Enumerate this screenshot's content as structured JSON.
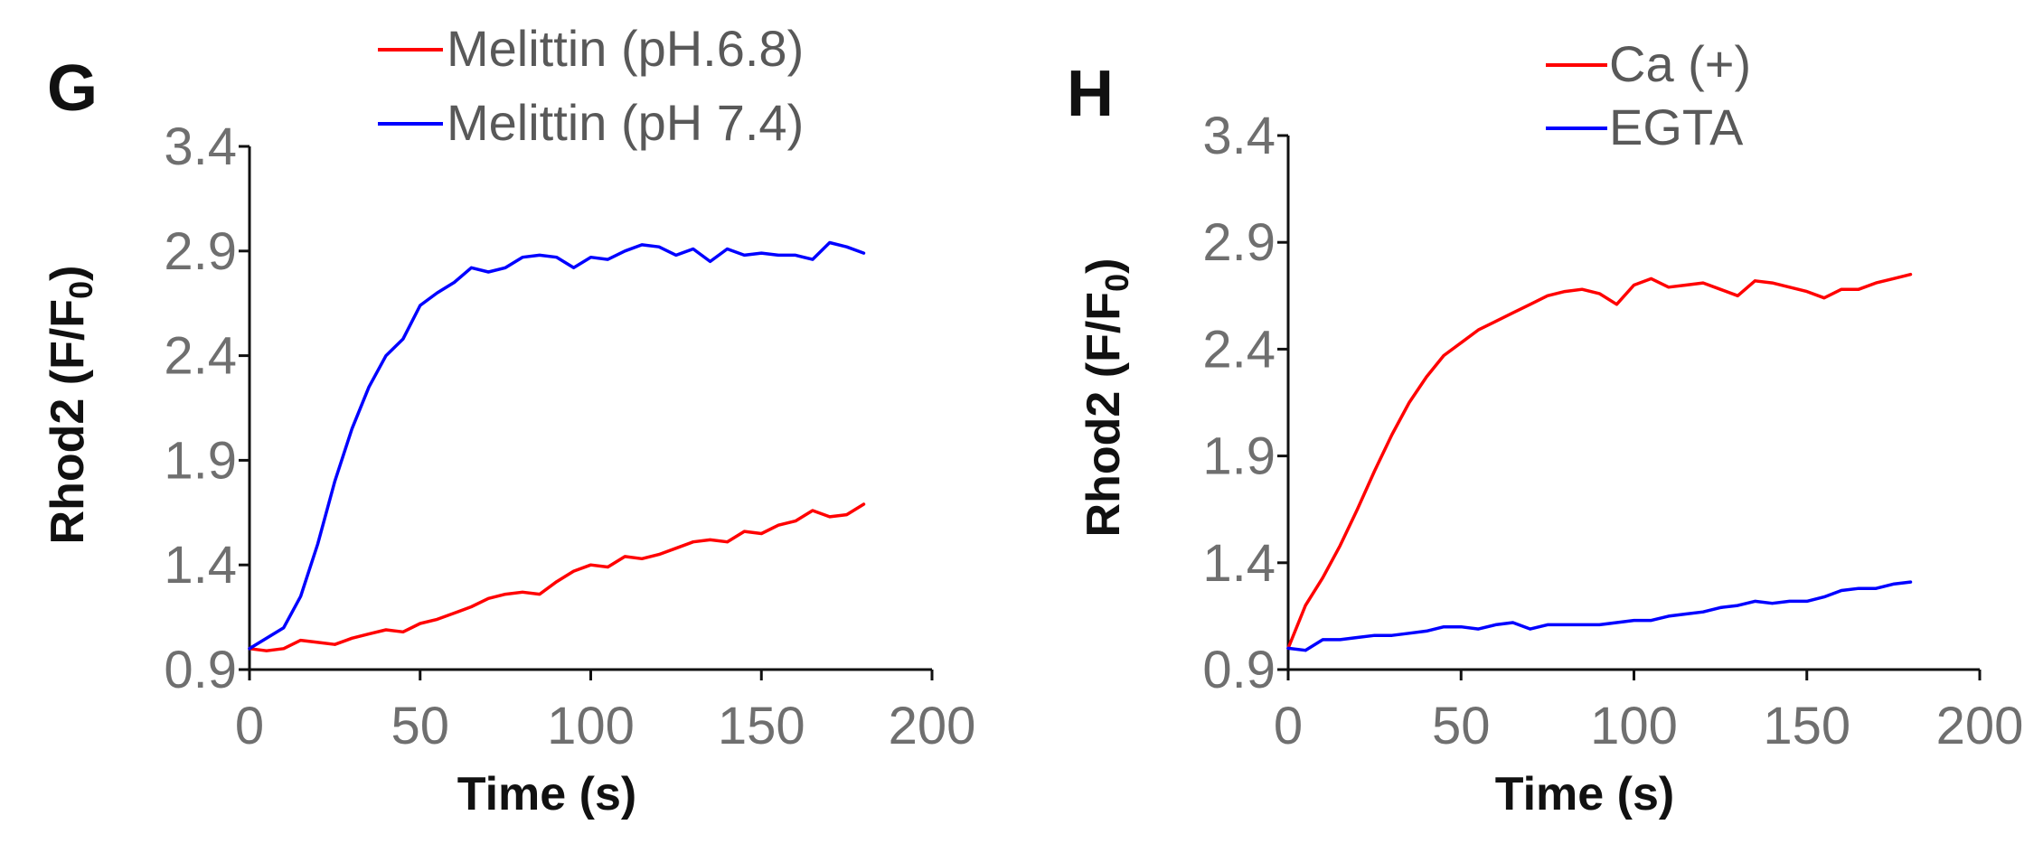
{
  "chart_data": [
    {
      "type": "line",
      "panel": "G",
      "xlabel": "Time (s)",
      "ylabel": "Rhod2 (F/F0)",
      "ylabel_main": "Rhod2 (F/F",
      "ylabel_sub": "0",
      "ylabel_close": ")",
      "xlim": [
        0,
        200
      ],
      "ylim": [
        0.9,
        3.4
      ],
      "xticks": [
        "0",
        "50",
        "100",
        "150",
        "200"
      ],
      "yticks": [
        "0.9",
        "1.4",
        "1.9",
        "2.4",
        "2.9",
        "3.4"
      ],
      "legend_position": "top",
      "series": [
        {
          "name": "Melittin (pH.6.8)",
          "color": "#ff0000",
          "x": [
            0,
            5,
            10,
            15,
            20,
            25,
            30,
            35,
            40,
            45,
            50,
            55,
            60,
            65,
            70,
            75,
            80,
            85,
            90,
            95,
            100,
            105,
            110,
            115,
            120,
            125,
            130,
            135,
            140,
            145,
            150,
            155,
            160,
            165,
            170,
            175,
            180
          ],
          "y": [
            1.0,
            0.99,
            1.0,
            1.04,
            1.03,
            1.02,
            1.05,
            1.07,
            1.09,
            1.08,
            1.12,
            1.14,
            1.17,
            1.2,
            1.24,
            1.26,
            1.27,
            1.26,
            1.32,
            1.37,
            1.4,
            1.39,
            1.44,
            1.43,
            1.45,
            1.48,
            1.51,
            1.52,
            1.51,
            1.56,
            1.55,
            1.59,
            1.61,
            1.66,
            1.63,
            1.64,
            1.69
          ]
        },
        {
          "name": "Melittin (pH 7.4)",
          "color": "#0000ff",
          "x": [
            0,
            5,
            10,
            15,
            20,
            25,
            30,
            35,
            40,
            45,
            50,
            55,
            60,
            65,
            70,
            75,
            80,
            85,
            90,
            95,
            100,
            105,
            110,
            115,
            120,
            125,
            130,
            135,
            140,
            145,
            150,
            155,
            160,
            165,
            170,
            175,
            180
          ],
          "y": [
            1.0,
            1.05,
            1.1,
            1.25,
            1.5,
            1.8,
            2.05,
            2.25,
            2.4,
            2.48,
            2.64,
            2.7,
            2.75,
            2.82,
            2.8,
            2.82,
            2.87,
            2.88,
            2.87,
            2.82,
            2.87,
            2.86,
            2.9,
            2.93,
            2.92,
            2.88,
            2.91,
            2.85,
            2.91,
            2.88,
            2.89,
            2.88,
            2.88,
            2.86,
            2.94,
            2.92,
            2.89
          ]
        }
      ]
    },
    {
      "type": "line",
      "panel": "H",
      "xlabel": "Time (s)",
      "ylabel": "Rhod2 (F/F0)",
      "ylabel_main": "Rhod2 (F/F",
      "ylabel_sub": "0",
      "ylabel_close": ")",
      "xlim": [
        0,
        200
      ],
      "ylim": [
        0.9,
        3.4
      ],
      "xticks": [
        "0",
        "50",
        "100",
        "150",
        "200"
      ],
      "yticks": [
        "0.9",
        "1.4",
        "1.9",
        "2.4",
        "2.9",
        "3.4"
      ],
      "legend_position": "top",
      "series": [
        {
          "name": "Ca (+)",
          "color": "#ff0000",
          "x": [
            0,
            5,
            10,
            15,
            20,
            25,
            30,
            35,
            40,
            45,
            50,
            55,
            60,
            65,
            70,
            75,
            80,
            85,
            90,
            95,
            100,
            105,
            110,
            115,
            120,
            125,
            130,
            135,
            140,
            145,
            150,
            155,
            160,
            165,
            170,
            175,
            180
          ],
          "y": [
            1.0,
            1.2,
            1.33,
            1.48,
            1.65,
            1.83,
            2.0,
            2.15,
            2.27,
            2.37,
            2.43,
            2.49,
            2.53,
            2.57,
            2.61,
            2.65,
            2.67,
            2.68,
            2.66,
            2.61,
            2.7,
            2.73,
            2.69,
            2.7,
            2.71,
            2.68,
            2.65,
            2.72,
            2.71,
            2.69,
            2.67,
            2.64,
            2.68,
            2.68,
            2.71,
            2.73,
            2.75
          ]
        },
        {
          "name": "EGTA",
          "color": "#0000ff",
          "x": [
            0,
            5,
            10,
            15,
            20,
            25,
            30,
            35,
            40,
            45,
            50,
            55,
            60,
            65,
            70,
            75,
            80,
            85,
            90,
            95,
            100,
            105,
            110,
            115,
            120,
            125,
            130,
            135,
            140,
            145,
            150,
            155,
            160,
            165,
            170,
            175,
            180
          ],
          "y": [
            1.0,
            0.99,
            1.04,
            1.04,
            1.05,
            1.06,
            1.06,
            1.07,
            1.08,
            1.1,
            1.1,
            1.09,
            1.11,
            1.12,
            1.09,
            1.11,
            1.11,
            1.11,
            1.11,
            1.12,
            1.13,
            1.13,
            1.15,
            1.16,
            1.17,
            1.19,
            1.2,
            1.22,
            1.21,
            1.22,
            1.22,
            1.24,
            1.27,
            1.28,
            1.28,
            1.3,
            1.31
          ]
        }
      ]
    }
  ]
}
